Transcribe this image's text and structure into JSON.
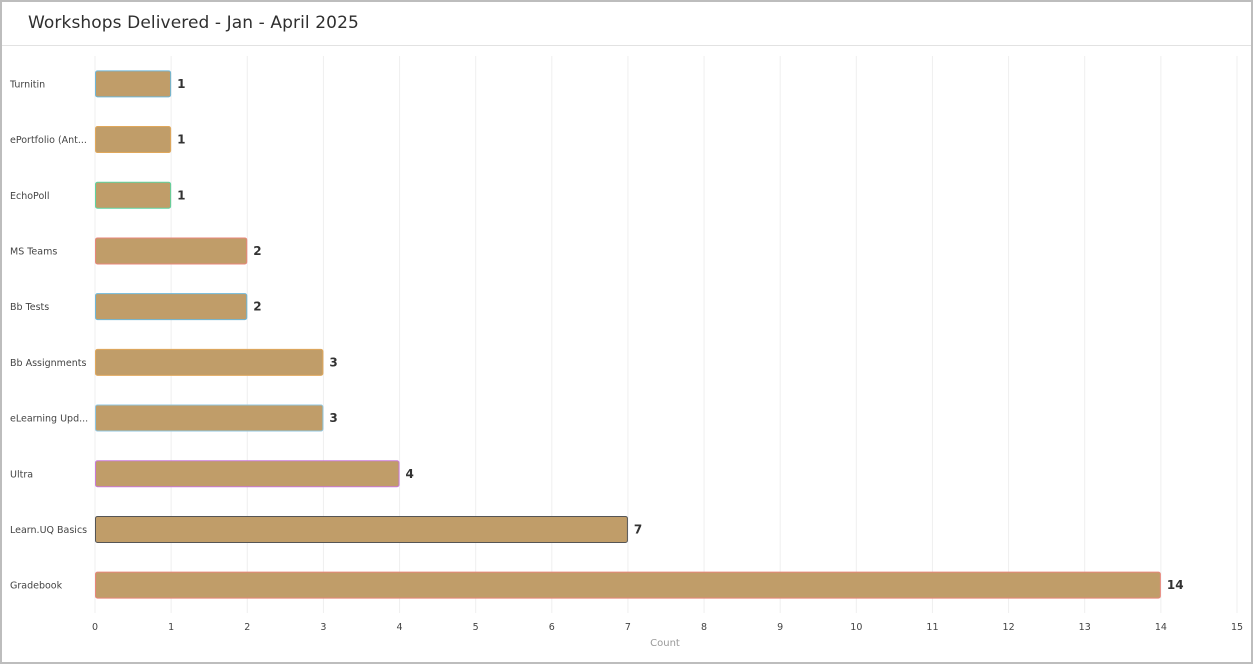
{
  "header": {
    "title": "Workshops Delivered - Jan - April 2025"
  },
  "chart_data": {
    "type": "bar",
    "orientation": "horizontal",
    "title": "Workshops Delivered - Jan - April 2025",
    "xlabel": "Count",
    "ylabel": "",
    "categories": [
      "Turnitin",
      "ePortfolio (Ant...",
      "EchoPoll",
      "MS Teams",
      "Bb Tests",
      "Bb Assignments",
      "eLearning Upd...",
      "Ultra",
      "Learn.UQ Basics",
      "Gradebook"
    ],
    "values": [
      1,
      1,
      1,
      2,
      2,
      3,
      3,
      4,
      7,
      14
    ],
    "xlim": [
      0,
      15
    ],
    "xticks": [
      0,
      1,
      2,
      3,
      4,
      5,
      6,
      7,
      8,
      9,
      10,
      11,
      12,
      13,
      14,
      15
    ],
    "grid": "vertical",
    "legend": "none",
    "bar_color": "#c09d69",
    "bar_outline_colors": [
      "#6fb7d8",
      "#e0a85c",
      "#5ed4a0",
      "#e8867a",
      "#6fb7d8",
      "#e0a85c",
      "#8fc6e0",
      "#c97ad8",
      "#555555",
      "#e8867a"
    ]
  }
}
